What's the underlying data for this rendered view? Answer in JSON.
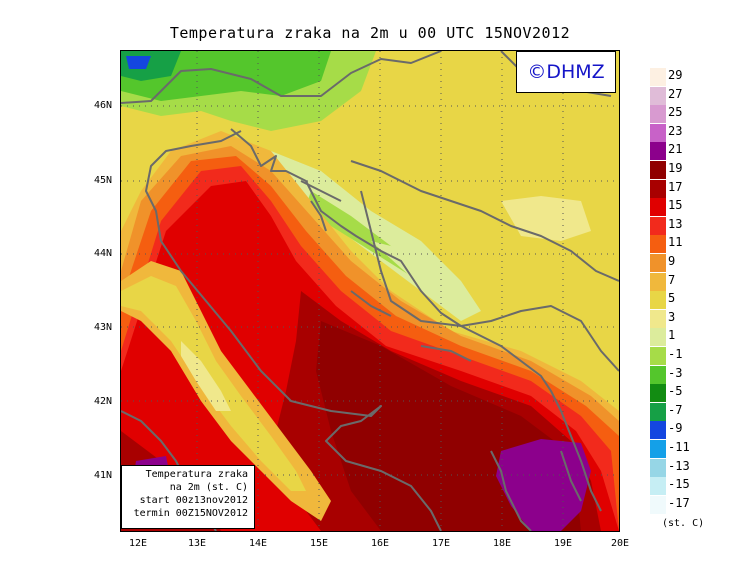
{
  "title": "Temperatura zraka na 2m u 00 UTC 15NOV2012",
  "logo": "©DHMZ",
  "info_box": {
    "line1": "Temperatura zraka",
    "line2": "na 2m (st. C)",
    "line3": "start 00z13nov2012",
    "line4": "termin 00Z15NOV2012"
  },
  "axes": {
    "lon_labels": [
      "12E",
      "13E",
      "14E",
      "15E",
      "16E",
      "17E",
      "18E",
      "19E",
      "20E"
    ],
    "lat_labels": [
      "41N",
      "42N",
      "43N",
      "44N",
      "45N",
      "46N"
    ]
  },
  "legend": {
    "unit": "(st. C)",
    "labels": [
      "29",
      "27",
      "25",
      "23",
      "21",
      "19",
      "17",
      "15",
      "13",
      "11",
      "9",
      "7",
      "5",
      "3",
      "1",
      "-1",
      "-3",
      "-5",
      "-7",
      "-9",
      "-11",
      "-13",
      "-15",
      "-17"
    ],
    "colors": [
      "#fdf0e2",
      "#e0bcd8",
      "#d89ad0",
      "#c862c8",
      "#8c008c",
      "#900000",
      "#a80000",
      "#e00000",
      "#f22a1c",
      "#f55e10",
      "#f0922a",
      "#f0b83c",
      "#e8d646",
      "#f0e88c",
      "#dcec9c",
      "#a6dc48",
      "#54c62c",
      "#128c12",
      "#16a046",
      "#1446e0",
      "#14a0e8",
      "#96d6e6",
      "#c6eef4",
      "#f0fafc"
    ]
  }
}
